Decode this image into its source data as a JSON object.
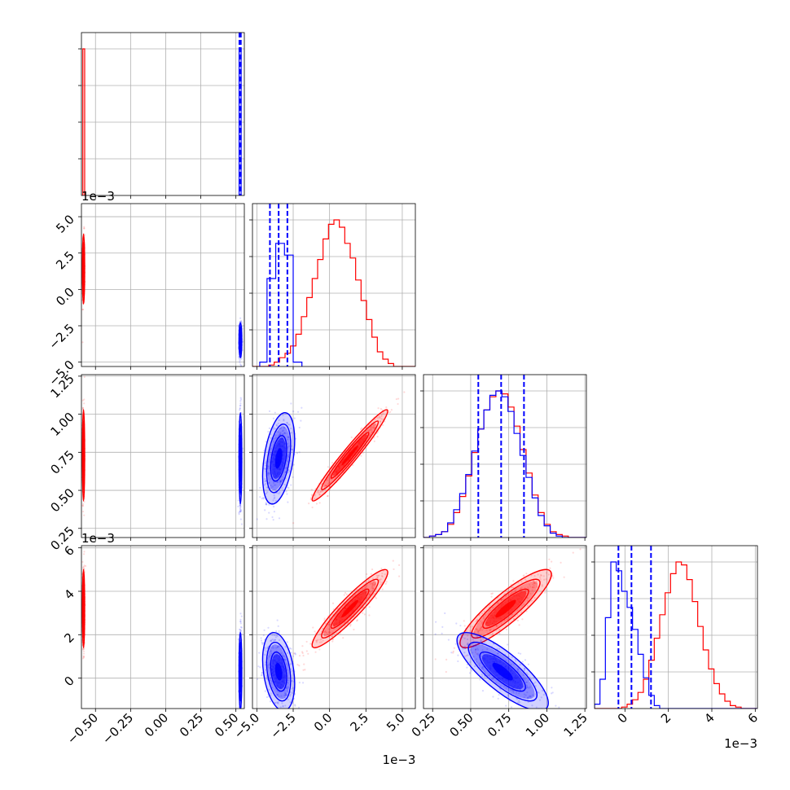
{
  "chart_data": {
    "type": "corner",
    "grid": true,
    "series": [
      {
        "color": "#ff0000"
      },
      {
        "color": "#0000ff",
        "dashed_quantiles": true
      }
    ],
    "parameters": [
      {
        "range": [
          -0.6,
          0.56
        ],
        "ticks": [
          -0.5,
          -0.25,
          0.0,
          0.25,
          0.5
        ],
        "tick_labels": [
          "−0.50",
          "−0.25",
          "0.00",
          "0.25",
          "0.50"
        ],
        "exponent": ""
      },
      {
        "range": [
          -5.3,
          5.9
        ],
        "ticks": [
          -5.0,
          -2.5,
          0.0,
          2.5,
          5.0
        ],
        "tick_labels": [
          "−5.0",
          "−2.5",
          "0.0",
          "2.5",
          "5.0"
        ],
        "exponent": "1e−3"
      },
      {
        "range": [
          0.19,
          1.26
        ],
        "ticks": [
          0.25,
          0.5,
          0.75,
          1.0,
          1.25
        ],
        "tick_labels": [
          "0.25",
          "0.50",
          "0.75",
          "1.00",
          "1.25"
        ],
        "exponent": ""
      },
      {
        "range": [
          -1.4,
          6.1
        ],
        "ticks": [
          0,
          2,
          4,
          6
        ],
        "tick_labels": [
          "0",
          "2",
          "4",
          "6"
        ],
        "exponent": "1e−3"
      }
    ],
    "diagonal": [
      {
        "red": {
          "bins": [
            [
              -0.59,
              -0.577
            ]
          ],
          "counts": [
            1.0
          ],
          "quantiles": []
        },
        "blue": {
          "bins": [
            [
              0.523,
              0.537
            ]
          ],
          "counts": [
            1.0
          ],
          "quantiles": [
            0.525,
            0.53,
            0.535
          ]
        }
      },
      {
        "red": {
          "x0": -5.3,
          "x1": 5.9,
          "counts": [
            0.0,
            0.0,
            0.0,
            0.01,
            0.03,
            0.06,
            0.09,
            0.14,
            0.22,
            0.34,
            0.47,
            0.6,
            0.73,
            0.87,
            0.97,
            1.0,
            0.95,
            0.84,
            0.74,
            0.59,
            0.45,
            0.32,
            0.2,
            0.1,
            0.05,
            0.02,
            0.0,
            0.0,
            0.0,
            0.0
          ]
        },
        "blue": {
          "bins": [
            [
              -4.8,
              -4.3
            ],
            [
              -4.3,
              -3.7
            ],
            [
              -3.7,
              -3.1
            ],
            [
              -3.1,
              -2.5
            ],
            [
              -2.5,
              -1.9
            ]
          ],
          "counts": [
            0.03,
            0.6,
            0.84,
            0.76,
            0.03
          ],
          "quantiles": [
            -4.1,
            -3.5,
            -2.9
          ]
        }
      },
      {
        "red": {
          "x0": 0.19,
          "x1": 1.26,
          "counts": [
            0.0,
            0.01,
            0.02,
            0.04,
            0.09,
            0.17,
            0.28,
            0.42,
            0.58,
            0.74,
            0.87,
            0.96,
            1.0,
            0.98,
            0.89,
            0.76,
            0.6,
            0.44,
            0.29,
            0.17,
            0.09,
            0.04,
            0.02,
            0.01,
            0.0,
            0.0,
            0.0
          ]
        },
        "blue": {
          "x0": 0.19,
          "x1": 1.26,
          "counts": [
            0.0,
            0.01,
            0.02,
            0.04,
            0.1,
            0.19,
            0.3,
            0.43,
            0.59,
            0.74,
            0.87,
            0.97,
            1.0,
            0.96,
            0.86,
            0.71,
            0.56,
            0.41,
            0.27,
            0.15,
            0.08,
            0.03,
            0.01,
            0.0,
            0.0,
            0.0,
            0.0
          ],
          "quantiles": [
            0.55,
            0.7,
            0.85
          ]
        }
      },
      {
        "red": {
          "x0": -1.4,
          "x1": 6.1,
          "counts": [
            0.0,
            0.0,
            0.0,
            0.0,
            0.0,
            0.01,
            0.03,
            0.06,
            0.11,
            0.2,
            0.33,
            0.48,
            0.64,
            0.79,
            0.92,
            1.0,
            0.98,
            0.88,
            0.73,
            0.56,
            0.4,
            0.27,
            0.17,
            0.1,
            0.05,
            0.02,
            0.01,
            0.0,
            0.0,
            0.0
          ]
        },
        "blue": {
          "x0": -1.4,
          "x1": 6.1,
          "counts": [
            0.03,
            0.2,
            0.62,
            1.0,
            0.94,
            0.8,
            0.69,
            0.54,
            0.37,
            0.21,
            0.09,
            0.02,
            0.0,
            0.0,
            0.0,
            0.0,
            0.0,
            0.0,
            0.0,
            0.0,
            0.0,
            0.0,
            0.0,
            0.0,
            0.0,
            0.0,
            0.0,
            0.0,
            0.0,
            0.0
          ],
          "quantiles": [
            -0.3,
            0.3,
            1.2
          ]
        }
      }
    ],
    "joint": [
      {
        "row": 1,
        "col": 0,
        "red": {
          "mean": [
            -0.585,
            1.4
          ],
          "sd": [
            0.004,
            1.2
          ],
          "rho": 0.0
        },
        "blue": {
          "mean": [
            0.532,
            -3.5
          ],
          "sd": [
            0.005,
            0.6
          ],
          "rho": 0.0
        }
      },
      {
        "row": 2,
        "col": 0,
        "red": {
          "mean": [
            -0.585,
            0.73
          ],
          "sd": [
            0.004,
            0.15
          ],
          "rho": 0.0
        },
        "blue": {
          "mean": [
            0.532,
            0.71
          ],
          "sd": [
            0.005,
            0.15
          ],
          "rho": 0.0
        }
      },
      {
        "row": 2,
        "col": 1,
        "red": {
          "mean": [
            1.4,
            0.73
          ],
          "sd": [
            1.3,
            0.15
          ],
          "rho": 0.97
        },
        "blue": {
          "mean": [
            -3.5,
            0.71
          ],
          "sd": [
            0.55,
            0.15
          ],
          "rho": 0.4
        }
      },
      {
        "row": 3,
        "col": 0,
        "red": {
          "mean": [
            -0.585,
            3.2
          ],
          "sd": [
            0.004,
            0.9
          ],
          "rho": 0.0
        },
        "blue": {
          "mean": [
            0.532,
            0.3
          ],
          "sd": [
            0.005,
            0.9
          ],
          "rho": 0.0
        }
      },
      {
        "row": 3,
        "col": 1,
        "red": {
          "mean": [
            1.4,
            3.2
          ],
          "sd": [
            1.3,
            0.9
          ],
          "rho": 0.93
        },
        "blue": {
          "mean": [
            -3.5,
            0.3
          ],
          "sd": [
            0.55,
            0.9
          ],
          "rho": -0.3
        }
      },
      {
        "row": 3,
        "col": 2,
        "red": {
          "mean": [
            0.73,
            3.2
          ],
          "sd": [
            0.15,
            0.9
          ],
          "rho": 0.88
        },
        "blue": {
          "mean": [
            0.71,
            0.3
          ],
          "sd": [
            0.15,
            0.9
          ],
          "rho": -0.8
        }
      }
    ]
  }
}
